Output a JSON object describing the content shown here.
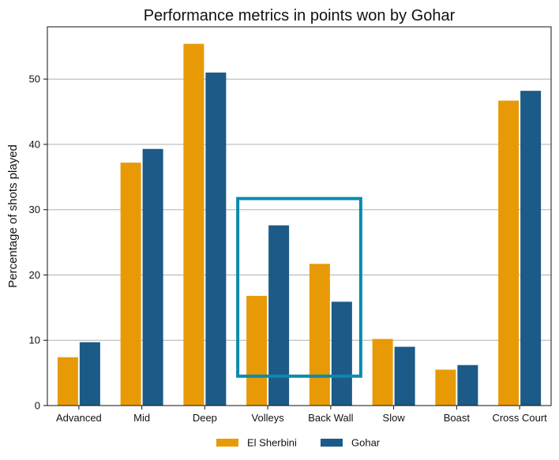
{
  "chart_data": {
    "type": "bar",
    "title": "Performance metrics in points won by Gohar",
    "xlabel": "",
    "ylabel": "Percentage of shots played",
    "ylim": [
      0,
      58
    ],
    "yticks": [
      0,
      10,
      20,
      30,
      40,
      50
    ],
    "grid": "horizontal",
    "legend_position": "bottom-center",
    "categories": [
      "Advanced",
      "Mid",
      "Deep",
      "Volleys",
      "Back Wall",
      "Slow",
      "Boast",
      "Cross Court"
    ],
    "series": [
      {
        "name": "El Sherbini",
        "color": "#E89A06",
        "values": [
          7.4,
          37.2,
          55.4,
          16.8,
          21.7,
          10.2,
          5.5,
          46.7
        ]
      },
      {
        "name": "Gohar",
        "color": "#1C5A87",
        "values": [
          9.7,
          39.3,
          51.0,
          27.6,
          15.9,
          9.0,
          6.2,
          48.2
        ]
      }
    ],
    "highlight": {
      "categories": [
        "Volleys",
        "Back Wall"
      ],
      "color": "#0A8AAE",
      "y_range": [
        4.5,
        31.7
      ]
    }
  }
}
